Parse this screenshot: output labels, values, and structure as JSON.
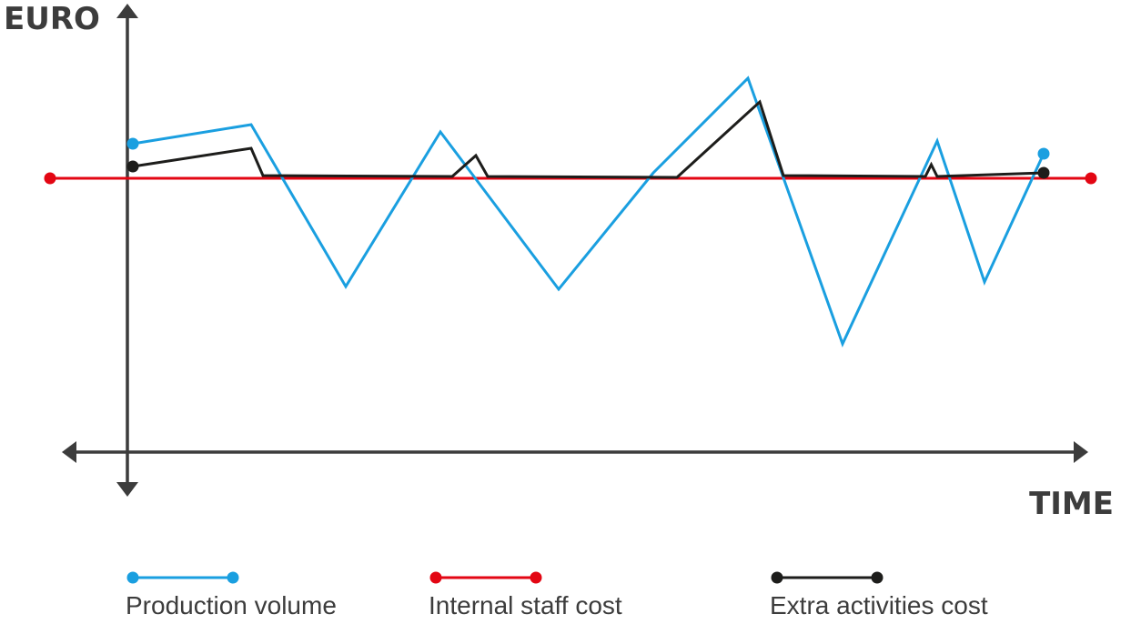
{
  "chart_data": {
    "type": "line",
    "xlabel": "TIME",
    "ylabel": "EURO",
    "x": [
      0,
      1,
      2,
      3,
      4,
      5,
      6,
      7,
      8,
      9,
      10,
      11,
      12,
      13
    ],
    "grid": false,
    "legend_position": "bottom",
    "series": [
      {
        "name": "Production volume",
        "color": "#1a9fe0",
        "points": [
          [
            0,
            158
          ],
          [
            1,
            137
          ],
          [
            1.8,
            315
          ],
          [
            2.6,
            145
          ],
          [
            3.6,
            318
          ],
          [
            4.4,
            190
          ],
          [
            5.2,
            86
          ],
          [
            6.0,
            378
          ],
          [
            6.8,
            155
          ],
          [
            7.2,
            310
          ],
          [
            7.7,
            169
          ]
        ]
      },
      {
        "name": "Internal staff cost",
        "color": "#e30613",
        "points": [
          [
            -0.7,
            196
          ],
          [
            8.1,
            196
          ]
        ]
      },
      {
        "name": "Extra activities cost",
        "color": "#1d1d1b",
        "points": [
          [
            0,
            183
          ],
          [
            1,
            163
          ],
          [
            1.1,
            193
          ],
          [
            2.7,
            194
          ],
          [
            2.9,
            171
          ],
          [
            3.0,
            194
          ],
          [
            4.6,
            195
          ],
          [
            5.3,
            112
          ],
          [
            5.5,
            193
          ],
          [
            6.7,
            194
          ],
          [
            6.75,
            181
          ],
          [
            6.8,
            194
          ],
          [
            7.7,
            190
          ]
        ]
      }
    ]
  }
}
